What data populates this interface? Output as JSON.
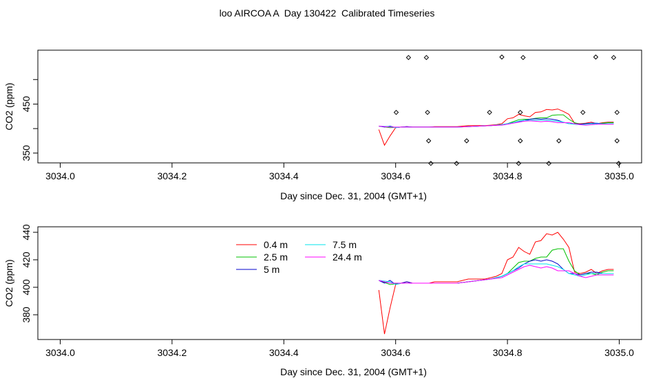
{
  "title": "loo AIRCOA A  Day 130422  Calibrated Timeseries",
  "chart_data": [
    {
      "type": "scatter",
      "xlabel": "Day since Dec. 31, 2004 (GMT+1)",
      "ylabel": "CO2 (ppm)",
      "xlim": [
        3033.96,
        3035.04
      ],
      "ylim": [
        330,
        560
      ],
      "x_ticks": [
        3034.0,
        3034.2,
        3034.4,
        3034.6,
        3034.8,
        3035.0
      ],
      "x_tick_labels": [
        "3034.0",
        "3034.2",
        "3034.4",
        "3034.6",
        "3034.8",
        "3035.0"
      ],
      "y_ticks": [
        350,
        400,
        450,
        500
      ],
      "y_tick_labels": [
        "350",
        "",
        "450",
        ""
      ],
      "grid": false,
      "points": [
        {
          "x": 3034.623,
          "y": 545
        },
        {
          "x": 3034.655,
          "y": 545
        },
        {
          "x": 3034.79,
          "y": 546
        },
        {
          "x": 3034.828,
          "y": 545
        },
        {
          "x": 3034.958,
          "y": 546
        },
        {
          "x": 3034.99,
          "y": 545
        },
        {
          "x": 3034.601,
          "y": 433
        },
        {
          "x": 3034.657,
          "y": 433
        },
        {
          "x": 3034.768,
          "y": 433
        },
        {
          "x": 3034.823,
          "y": 433
        },
        {
          "x": 3034.935,
          "y": 433
        },
        {
          "x": 3034.996,
          "y": 433
        },
        {
          "x": 3034.659,
          "y": 375
        },
        {
          "x": 3034.727,
          "y": 375
        },
        {
          "x": 3034.823,
          "y": 375
        },
        {
          "x": 3034.892,
          "y": 375
        },
        {
          "x": 3034.996,
          "y": 375
        },
        {
          "x": 3034.663,
          "y": 329
        },
        {
          "x": 3034.709,
          "y": 329
        },
        {
          "x": 3034.82,
          "y": 329
        },
        {
          "x": 3034.874,
          "y": 329
        },
        {
          "x": 3034.999,
          "y": 329
        }
      ],
      "series": [
        {
          "name": "0.4 m",
          "color": "#ff0000",
          "x": [
            3034.57,
            3034.58,
            3034.59,
            3034.6,
            3034.61,
            3034.62,
            3034.63,
            3034.64,
            3034.65,
            3034.66,
            3034.67,
            3034.68,
            3034.69,
            3034.7,
            3034.71,
            3034.72,
            3034.73,
            3034.74,
            3034.75,
            3034.76,
            3034.77,
            3034.78,
            3034.79,
            3034.8,
            3034.81,
            3034.82,
            3034.83,
            3034.84,
            3034.85,
            3034.86,
            3034.87,
            3034.88,
            3034.89,
            3034.9,
            3034.91,
            3034.92,
            3034.93,
            3034.94,
            3034.95,
            3034.96,
            3034.97,
            3034.98,
            3034.99
          ],
          "y": [
            398,
            366,
            385,
            402,
            403,
            404,
            403,
            403,
            403,
            403,
            404,
            404,
            404,
            404,
            404,
            405,
            406,
            406,
            406,
            406,
            407,
            408,
            410,
            420,
            422,
            429,
            426,
            424,
            433,
            434,
            439,
            438,
            440,
            435,
            429,
            411,
            410,
            411,
            413,
            410,
            412,
            413,
            413
          ]
        },
        {
          "name": "2.5 m",
          "color": "#00c000",
          "x": [
            3034.57,
            3034.59,
            3034.61,
            3034.63,
            3034.65,
            3034.67,
            3034.69,
            3034.71,
            3034.73,
            3034.75,
            3034.77,
            3034.79,
            3034.8,
            3034.81,
            3034.82,
            3034.83,
            3034.84,
            3034.85,
            3034.86,
            3034.87,
            3034.88,
            3034.89,
            3034.9,
            3034.91,
            3034.92,
            3034.93,
            3034.94,
            3034.95,
            3034.96,
            3034.97,
            3034.98,
            3034.99
          ],
          "y": [
            405,
            402,
            403,
            403,
            403,
            403,
            403,
            403,
            404,
            405,
            406,
            408,
            410,
            414,
            418,
            419,
            419,
            421,
            422,
            422,
            427,
            428,
            428,
            419,
            412,
            409,
            410,
            410,
            409,
            411,
            412,
            412
          ]
        },
        {
          "name": "5 m",
          "color": "#0000cc",
          "x": [
            3034.57,
            3034.58,
            3034.59,
            3034.6,
            3034.61,
            3034.62,
            3034.63,
            3034.65,
            3034.67,
            3034.69,
            3034.71,
            3034.73,
            3034.75,
            3034.77,
            3034.79,
            3034.8,
            3034.81,
            3034.82,
            3034.83,
            3034.84,
            3034.85,
            3034.86,
            3034.87,
            3034.88,
            3034.89,
            3034.9,
            3034.91,
            3034.92,
            3034.93,
            3034.94,
            3034.95,
            3034.96,
            3034.97,
            3034.98,
            3034.99
          ],
          "y": [
            405,
            403,
            405,
            402,
            403,
            404,
            403,
            403,
            403,
            403,
            403,
            404,
            405,
            406,
            408,
            410,
            412,
            414,
            417,
            419,
            420,
            419,
            420,
            419,
            417,
            413,
            410,
            410,
            409,
            410,
            411,
            411,
            410,
            410,
            410
          ]
        },
        {
          "name": "7.5 m",
          "color": "#00e5ee",
          "x": [
            3034.57,
            3034.59,
            3034.6,
            3034.61,
            3034.63,
            3034.65,
            3034.67,
            3034.69,
            3034.71,
            3034.73,
            3034.75,
            3034.77,
            3034.79,
            3034.8,
            3034.81,
            3034.82,
            3034.83,
            3034.84,
            3034.85,
            3034.86,
            3034.87,
            3034.88,
            3034.89,
            3034.9,
            3034.91,
            3034.92,
            3034.93,
            3034.94,
            3034.95,
            3034.96,
            3034.97,
            3034.98,
            3034.99
          ],
          "y": [
            405,
            404,
            402,
            403,
            403,
            403,
            403,
            403,
            403,
            404,
            405,
            406,
            408,
            410,
            412,
            415,
            417,
            417,
            417,
            417,
            417,
            416,
            415,
            413,
            410,
            409,
            408,
            409,
            410,
            410,
            410,
            410,
            410
          ]
        },
        {
          "name": "24.4 m",
          "color": "#ff00ff",
          "x": [
            3034.57,
            3034.59,
            3034.61,
            3034.63,
            3034.65,
            3034.67,
            3034.69,
            3034.71,
            3034.73,
            3034.75,
            3034.77,
            3034.79,
            3034.8,
            3034.81,
            3034.82,
            3034.83,
            3034.84,
            3034.85,
            3034.86,
            3034.87,
            3034.88,
            3034.89,
            3034.9,
            3034.91,
            3034.92,
            3034.93,
            3034.94,
            3034.95,
            3034.96,
            3034.97,
            3034.98,
            3034.99
          ],
          "y": [
            405,
            403,
            403,
            403,
            403,
            403,
            403,
            403,
            404,
            405,
            406,
            407,
            409,
            411,
            413,
            415,
            416,
            415,
            414,
            415,
            414,
            412,
            412,
            412,
            410,
            408,
            407,
            408,
            409,
            409,
            409,
            409
          ]
        }
      ]
    },
    {
      "type": "line",
      "xlabel": "Day since Dec. 31, 2004 (GMT+1)",
      "ylabel": "CO2 (ppm)",
      "xlim": [
        3033.96,
        3035.04
      ],
      "ylim": [
        362,
        444
      ],
      "x_ticks": [
        3034.0,
        3034.2,
        3034.4,
        3034.6,
        3034.8,
        3035.0
      ],
      "x_tick_labels": [
        "3034.0",
        "3034.2",
        "3034.4",
        "3034.6",
        "3034.8",
        "3035.0"
      ],
      "y_ticks": [
        380,
        400,
        420,
        440
      ],
      "y_tick_labels": [
        "380",
        "400",
        "420",
        "440"
      ],
      "grid": false,
      "legend": {
        "placement": "top-center",
        "columns": 2
      },
      "series": [
        {
          "name": "0.4 m",
          "color": "#ff0000",
          "x": [
            3034.57,
            3034.58,
            3034.59,
            3034.6,
            3034.61,
            3034.62,
            3034.63,
            3034.64,
            3034.65,
            3034.66,
            3034.67,
            3034.68,
            3034.69,
            3034.7,
            3034.71,
            3034.72,
            3034.73,
            3034.74,
            3034.75,
            3034.76,
            3034.77,
            3034.78,
            3034.79,
            3034.8,
            3034.81,
            3034.82,
            3034.83,
            3034.84,
            3034.85,
            3034.86,
            3034.87,
            3034.88,
            3034.89,
            3034.9,
            3034.91,
            3034.92,
            3034.93,
            3034.94,
            3034.95,
            3034.96,
            3034.97,
            3034.98,
            3034.99
          ],
          "y": [
            398,
            366,
            385,
            402,
            403,
            404,
            403,
            403,
            403,
            403,
            404,
            404,
            404,
            404,
            404,
            405,
            406,
            406,
            406,
            406,
            407,
            408,
            410,
            420,
            422,
            429,
            426,
            424,
            433,
            434,
            439,
            438,
            440,
            435,
            429,
            411,
            410,
            411,
            413,
            410,
            412,
            413,
            413
          ]
        },
        {
          "name": "2.5 m",
          "color": "#00c000",
          "x": [
            3034.57,
            3034.59,
            3034.61,
            3034.63,
            3034.65,
            3034.67,
            3034.69,
            3034.71,
            3034.73,
            3034.75,
            3034.77,
            3034.79,
            3034.8,
            3034.81,
            3034.82,
            3034.83,
            3034.84,
            3034.85,
            3034.86,
            3034.87,
            3034.88,
            3034.89,
            3034.9,
            3034.91,
            3034.92,
            3034.93,
            3034.94,
            3034.95,
            3034.96,
            3034.97,
            3034.98,
            3034.99
          ],
          "y": [
            405,
            402,
            403,
            403,
            403,
            403,
            403,
            403,
            404,
            405,
            406,
            408,
            410,
            414,
            418,
            419,
            419,
            421,
            422,
            422,
            427,
            428,
            428,
            419,
            412,
            409,
            410,
            410,
            409,
            411,
            412,
            412
          ]
        },
        {
          "name": "5 m",
          "color": "#0000cc",
          "x": [
            3034.57,
            3034.58,
            3034.59,
            3034.6,
            3034.61,
            3034.62,
            3034.63,
            3034.65,
            3034.67,
            3034.69,
            3034.71,
            3034.73,
            3034.75,
            3034.77,
            3034.79,
            3034.8,
            3034.81,
            3034.82,
            3034.83,
            3034.84,
            3034.85,
            3034.86,
            3034.87,
            3034.88,
            3034.89,
            3034.9,
            3034.91,
            3034.92,
            3034.93,
            3034.94,
            3034.95,
            3034.96,
            3034.97,
            3034.98,
            3034.99
          ],
          "y": [
            405,
            403,
            405,
            402,
            403,
            404,
            403,
            403,
            403,
            403,
            403,
            404,
            405,
            406,
            408,
            410,
            412,
            414,
            417,
            419,
            420,
            419,
            420,
            419,
            417,
            413,
            410,
            410,
            409,
            410,
            411,
            411,
            410,
            410,
            410
          ]
        },
        {
          "name": "7.5 m",
          "color": "#00e5ee",
          "x": [
            3034.57,
            3034.59,
            3034.6,
            3034.61,
            3034.63,
            3034.65,
            3034.67,
            3034.69,
            3034.71,
            3034.73,
            3034.75,
            3034.77,
            3034.79,
            3034.8,
            3034.81,
            3034.82,
            3034.83,
            3034.84,
            3034.85,
            3034.86,
            3034.87,
            3034.88,
            3034.89,
            3034.9,
            3034.91,
            3034.92,
            3034.93,
            3034.94,
            3034.95,
            3034.96,
            3034.97,
            3034.98,
            3034.99
          ],
          "y": [
            405,
            404,
            402,
            403,
            403,
            403,
            403,
            403,
            403,
            404,
            405,
            406,
            408,
            410,
            412,
            415,
            417,
            417,
            417,
            417,
            417,
            416,
            415,
            413,
            410,
            409,
            408,
            409,
            410,
            410,
            410,
            410,
            410
          ]
        },
        {
          "name": "24.4 m",
          "color": "#ff00ff",
          "x": [
            3034.57,
            3034.59,
            3034.61,
            3034.63,
            3034.65,
            3034.67,
            3034.69,
            3034.71,
            3034.73,
            3034.75,
            3034.77,
            3034.79,
            3034.8,
            3034.81,
            3034.82,
            3034.83,
            3034.84,
            3034.85,
            3034.86,
            3034.87,
            3034.88,
            3034.89,
            3034.9,
            3034.91,
            3034.92,
            3034.93,
            3034.94,
            3034.95,
            3034.96,
            3034.97,
            3034.98,
            3034.99
          ],
          "y": [
            405,
            403,
            403,
            403,
            403,
            403,
            403,
            403,
            404,
            405,
            406,
            407,
            409,
            411,
            413,
            415,
            416,
            415,
            414,
            415,
            414,
            412,
            412,
            412,
            410,
            408,
            407,
            408,
            409,
            409,
            409,
            409
          ]
        }
      ]
    }
  ]
}
